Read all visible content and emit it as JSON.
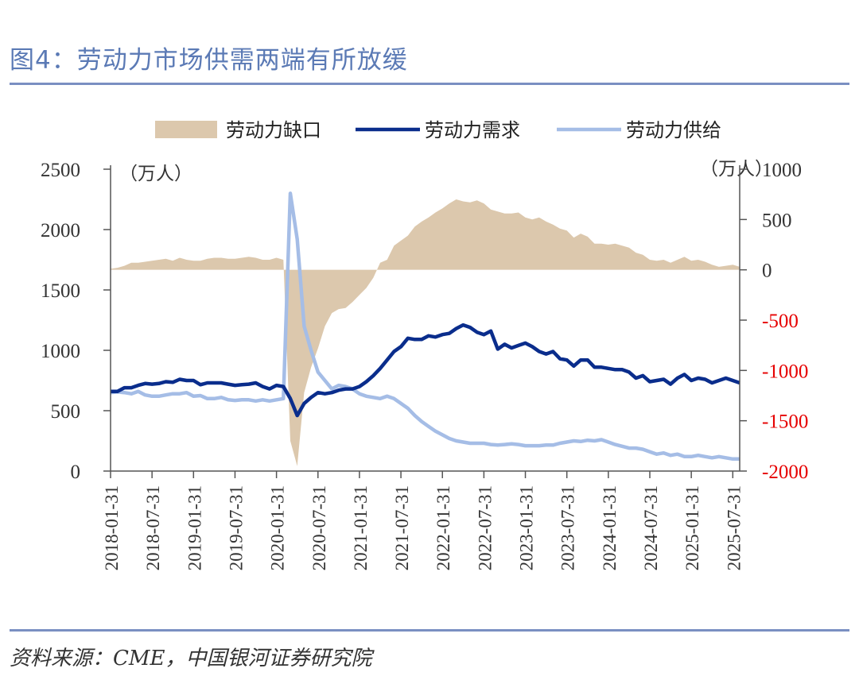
{
  "figure": {
    "title": "图4：劳动力市场供需两端有所放缓",
    "source": "资料来源：CME，中国银河证券研究院"
  },
  "colors": {
    "gap": "#dcc8ad",
    "demand": "#0a2d8c",
    "supply": "#a5bde6",
    "left_axis_text": "#333333",
    "right_axis_negative": "#e60000",
    "rule": "#7a8fc2",
    "title": "#5b7ab5"
  },
  "chart_data": {
    "type": "line",
    "title": "",
    "legend": [
      "劳动力缺口",
      "劳动力需求",
      "劳动力供给"
    ],
    "legend_position": "top",
    "left_axis": {
      "unit_label": "（万人）",
      "ylim": [
        0,
        2500
      ],
      "ticks": [
        "0",
        "500",
        "1000",
        "1500",
        "2000",
        "2500"
      ]
    },
    "right_axis": {
      "unit_label": "（万人）",
      "ylim": [
        -2000,
        1000
      ],
      "ticks": [
        "-2000",
        "-1500",
        "-1000",
        "-500",
        "0",
        "500",
        "1000"
      ]
    },
    "x_tick_labels": [
      "2018-01-31",
      "2018-07-31",
      "2019-01-31",
      "2019-07-31",
      "2020-01-31",
      "2020-07-31",
      "2021-01-31",
      "2021-07-31",
      "2022-01-31",
      "2022-07-31",
      "2023-01-31",
      "2023-07-31",
      "2024-01-31",
      "2024-07-31",
      "2025-01-31",
      "2025-07-31"
    ],
    "x_start": "2018-01",
    "n_months": 92,
    "series": [
      {
        "name": "劳动力需求",
        "axis": "left",
        "style": "line",
        "values": [
          660,
          660,
          690,
          690,
          710,
          725,
          720,
          725,
          740,
          735,
          760,
          750,
          750,
          715,
          730,
          730,
          730,
          720,
          710,
          715,
          720,
          730,
          700,
          680,
          710,
          700,
          600,
          460,
          560,
          610,
          650,
          640,
          650,
          670,
          680,
          680,
          700,
          740,
          790,
          850,
          920,
          990,
          1030,
          1100,
          1090,
          1090,
          1120,
          1110,
          1130,
          1140,
          1180,
          1210,
          1190,
          1150,
          1130,
          1160,
          1010,
          1050,
          1020,
          1040,
          1060,
          1030,
          990,
          970,
          990,
          930,
          920,
          870,
          920,
          920,
          860,
          860,
          850,
          840,
          840,
          820,
          770,
          790,
          740,
          750,
          760,
          720,
          770,
          800,
          750,
          770,
          760,
          730,
          750,
          770,
          750,
          730
        ]
      },
      {
        "name": "劳动力供给",
        "axis": "left",
        "style": "line",
        "values": [
          650,
          655,
          650,
          640,
          660,
          630,
          620,
          620,
          630,
          640,
          640,
          650,
          620,
          625,
          600,
          600,
          610,
          590,
          585,
          590,
          590,
          580,
          590,
          580,
          590,
          600,
          2300,
          1920,
          1200,
          1000,
          820,
          750,
          680,
          710,
          700,
          680,
          640,
          620,
          610,
          600,
          620,
          600,
          560,
          520,
          460,
          410,
          370,
          330,
          300,
          270,
          250,
          240,
          230,
          230,
          230,
          220,
          215,
          220,
          225,
          220,
          210,
          210,
          210,
          215,
          215,
          230,
          240,
          250,
          245,
          255,
          250,
          260,
          240,
          220,
          205,
          190,
          190,
          180,
          160,
          140,
          150,
          130,
          140,
          120,
          120,
          130,
          120,
          110,
          120,
          110,
          100,
          100
        ]
      },
      {
        "name": "劳动力缺口",
        "axis": "right",
        "style": "area",
        "values": [
          10,
          20,
          40,
          70,
          70,
          80,
          90,
          100,
          110,
          90,
          120,
          100,
          90,
          90,
          110,
          120,
          120,
          110,
          110,
          120,
          130,
          120,
          100,
          100,
          120,
          100,
          -1700,
          -1950,
          -1220,
          -970,
          -780,
          -560,
          -430,
          -390,
          -380,
          -320,
          -250,
          -180,
          -80,
          70,
          100,
          240,
          290,
          340,
          430,
          480,
          520,
          570,
          610,
          660,
          700,
          680,
          670,
          690,
          660,
          600,
          580,
          560,
          560,
          570,
          520,
          500,
          520,
          480,
          450,
          410,
          390,
          320,
          360,
          330,
          260,
          260,
          250,
          260,
          240,
          220,
          170,
          150,
          100,
          90,
          100,
          70,
          100,
          130,
          90,
          100,
          80,
          50,
          30,
          40,
          50,
          30
        ]
      }
    ]
  }
}
